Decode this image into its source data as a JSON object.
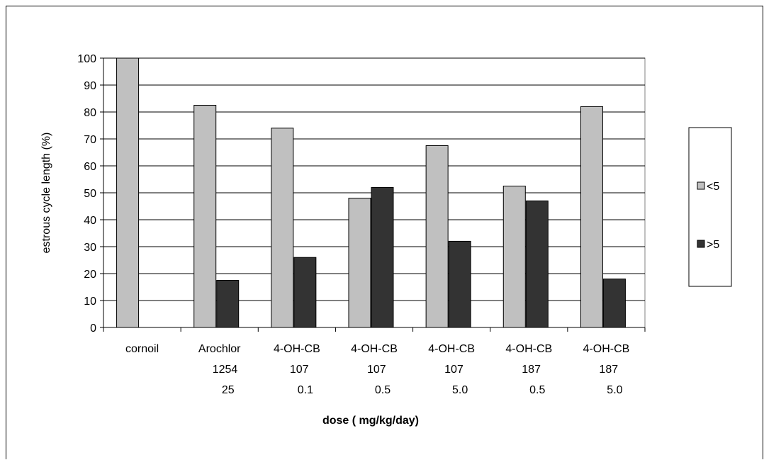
{
  "chart_data": {
    "type": "bar",
    "title": "",
    "ylabel": "estrous cycle length (%)",
    "xlabel": "dose ( mg/kg/day)",
    "ylim": [
      0,
      100
    ],
    "yticks": [
      0,
      10,
      20,
      30,
      40,
      50,
      60,
      70,
      80,
      90,
      100
    ],
    "grid": true,
    "legend_position": "right",
    "categories": [
      {
        "line1": "cornoil",
        "line2": "",
        "line3": ""
      },
      {
        "line1": "Arochlor",
        "line2": "1254",
        "line3": "25"
      },
      {
        "line1": "4-OH-CB",
        "line2": "107",
        "line3": "0.1"
      },
      {
        "line1": "4-OH-CB",
        "line2": "107",
        "line3": "0.5"
      },
      {
        "line1": "4-OH-CB",
        "line2": "107",
        "line3": "5.0"
      },
      {
        "line1": "4-OH-CB",
        "line2": "187",
        "line3": "0.5"
      },
      {
        "line1": "4-OH-CB",
        "line2": "187",
        "line3": "5.0"
      }
    ],
    "series": [
      {
        "name": "<5",
        "color": "#c0c0c0",
        "values": [
          100,
          82.5,
          74,
          48,
          67.5,
          52.5,
          82
        ]
      },
      {
        "name": ">5",
        "color": "#333333",
        "values": [
          0,
          17.5,
          26,
          52,
          32,
          47,
          18
        ]
      }
    ]
  }
}
